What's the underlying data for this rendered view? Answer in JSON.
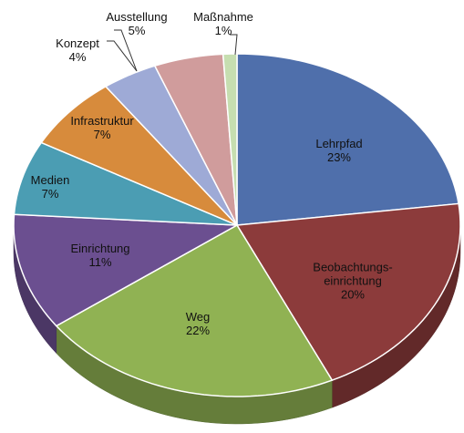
{
  "chart_data": {
    "type": "pie",
    "categories": [
      "Lehrpfad",
      "Beobachtungs-\neinrichtung",
      "Weg",
      "Einrichtung",
      "Medien",
      "Infrastruktur",
      "Konzept",
      "Ausstellung",
      "Maßnahme"
    ],
    "values": [
      23,
      20,
      22,
      11,
      7,
      7,
      4,
      5,
      1
    ],
    "value_labels": [
      "23%",
      "20%",
      "22%",
      "11%",
      "7%",
      "7%",
      "4%",
      "5%",
      "1%"
    ],
    "colors": [
      "#4f6fab",
      "#8c3b3b",
      "#90b253",
      "#6b4f90",
      "#4b9db3",
      "#d78b3c",
      "#9eaad6",
      "#d09c9c",
      "#c6deb0"
    ]
  }
}
